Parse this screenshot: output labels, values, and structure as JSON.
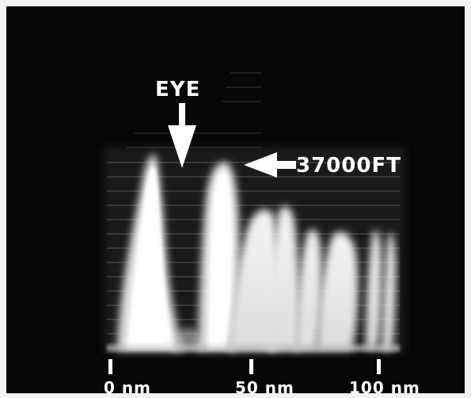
{
  "annotations": {
    "eye": "EYE",
    "altitude": "37000FT"
  },
  "range_ticks": [
    "0 nm",
    "50 nm",
    "100 nm"
  ],
  "colors": {
    "background": "#070707",
    "echo": "#ffffff",
    "frame": "#f3f3f3"
  }
}
